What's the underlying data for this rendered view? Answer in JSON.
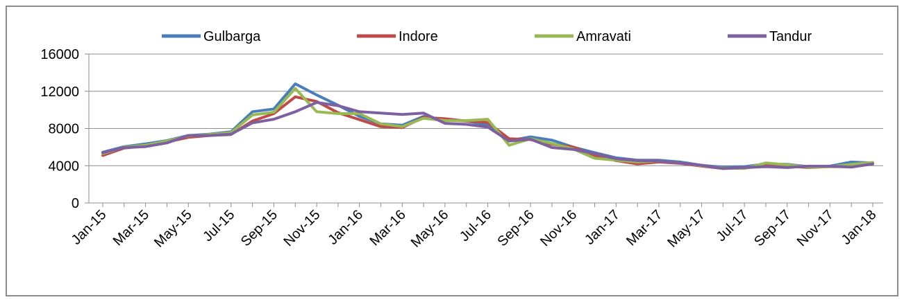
{
  "chart_data": {
    "type": "line",
    "title": "",
    "xlabel": "",
    "ylabel": "",
    "ylim": [
      0,
      16000
    ],
    "y_ticks": [
      "0",
      "4000",
      "8000",
      "12000",
      "16000"
    ],
    "grid": "horizontal",
    "legend_position": "top",
    "x_tick_labels": [
      "Jan-15",
      "Mar-15",
      "May-15",
      "Jul-15",
      "Sep-15",
      "Nov-15",
      "Jan-16",
      "Mar-16",
      "May-16",
      "Jul-16",
      "Sep-16",
      "Nov-16",
      "Jan-17",
      "Mar-17",
      "May-17",
      "Jul-17",
      "Sep-17",
      "Nov-17",
      "Jan-18"
    ],
    "x": [
      "Jan-15",
      "Feb-15",
      "Mar-15",
      "Apr-15",
      "May-15",
      "Jun-15",
      "Jul-15",
      "Aug-15",
      "Sep-15",
      "Oct-15",
      "Nov-15",
      "Dec-15",
      "Jan-16",
      "Feb-16",
      "Mar-16",
      "Apr-16",
      "May-16",
      "Jun-16",
      "Jul-16",
      "Aug-16",
      "Sep-16",
      "Oct-16",
      "Nov-16",
      "Dec-16",
      "Jan-17",
      "Feb-17",
      "Mar-17",
      "Apr-17",
      "May-17",
      "Jun-17",
      "Jul-17",
      "Aug-17",
      "Sep-17",
      "Oct-17",
      "Nov-17",
      "Dec-17",
      "Jan-18"
    ],
    "series": [
      {
        "name": "Gulbarga",
        "color": "#4a7ebb",
        "values": [
          5450,
          6050,
          6350,
          6700,
          7250,
          7400,
          7650,
          9800,
          10100,
          12800,
          11600,
          10500,
          9300,
          8500,
          8350,
          9300,
          8900,
          8800,
          8400,
          6700,
          7100,
          6750,
          6000,
          5400,
          4850,
          4600,
          4600,
          4400,
          4050,
          3850,
          3900,
          4200,
          4150,
          3900,
          3950,
          4400,
          4300
        ]
      },
      {
        "name": "Indore",
        "color": "#be4b48",
        "values": [
          5100,
          5900,
          6100,
          6550,
          7050,
          7250,
          7350,
          8800,
          9600,
          11400,
          10900,
          9700,
          8950,
          8200,
          8100,
          9200,
          9050,
          8800,
          8650,
          6900,
          6800,
          6300,
          6000,
          5100,
          4550,
          4200,
          4400,
          4250,
          3950,
          3700,
          3750,
          4000,
          3950,
          3800,
          3900,
          3900,
          4200
        ]
      },
      {
        "name": "Amravati",
        "color": "#98b954",
        "values": [
          5300,
          6000,
          6200,
          6650,
          7200,
          7350,
          7550,
          9450,
          9750,
          12300,
          9800,
          9600,
          9600,
          8500,
          8200,
          9100,
          8850,
          8850,
          9000,
          6200,
          6900,
          6400,
          5800,
          4800,
          4600,
          4400,
          4500,
          4300,
          4000,
          3750,
          3700,
          4300,
          4100,
          3850,
          3900,
          4150,
          4350
        ]
      },
      {
        "name": "Tandur",
        "color": "#7d60a0",
        "values": [
          5400,
          5950,
          6050,
          6450,
          7250,
          7250,
          7400,
          8600,
          9000,
          9800,
          10800,
          10450,
          9800,
          9650,
          9500,
          9650,
          8550,
          8450,
          8150,
          6650,
          6850,
          5950,
          5750,
          5300,
          4750,
          4550,
          4500,
          4300,
          4050,
          3700,
          3800,
          3900,
          3800,
          3950,
          3950,
          3850,
          4200
        ]
      }
    ]
  }
}
